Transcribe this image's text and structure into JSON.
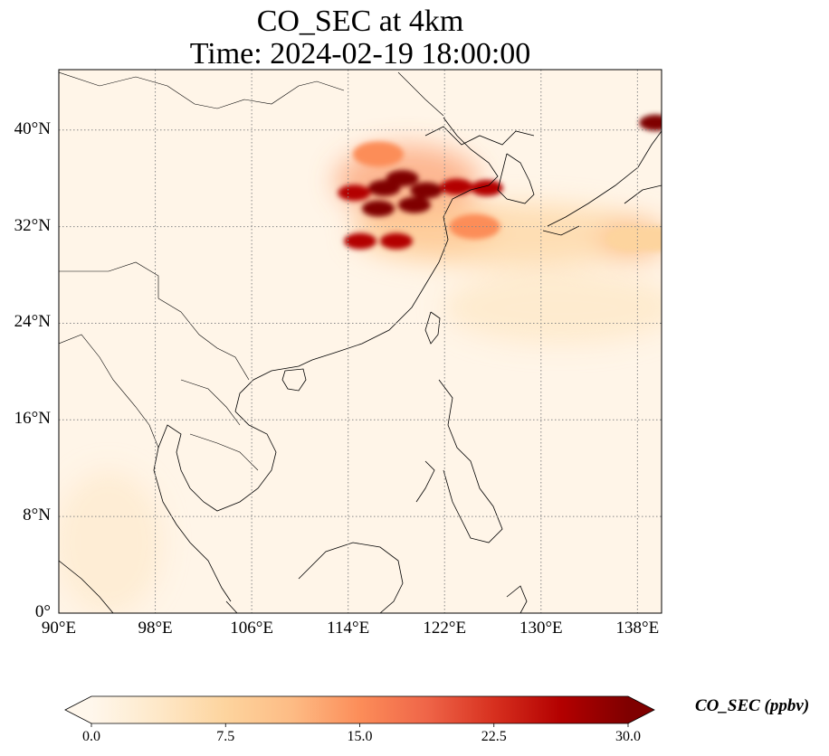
{
  "title": {
    "line1": "CO_SEC at 4km",
    "line2": "Time: 2024-02-19 18:00:00"
  },
  "map": {
    "projection": "PlateCarree",
    "lon_range": [
      90,
      140
    ],
    "lat_range": [
      0,
      45
    ],
    "gridlines": "dotted",
    "lon_ticks": [
      {
        "value": 90,
        "label": "90°E"
      },
      {
        "value": 98,
        "label": "98°E"
      },
      {
        "value": 106,
        "label": "106°E"
      },
      {
        "value": 114,
        "label": "114°E"
      },
      {
        "value": 122,
        "label": "122°E"
      },
      {
        "value": 130,
        "label": "130°E"
      },
      {
        "value": 138,
        "label": "138°E"
      }
    ],
    "lat_ticks": [
      {
        "value": 0,
        "label": "0°"
      },
      {
        "value": 8,
        "label": "8°N"
      },
      {
        "value": 16,
        "label": "16°N"
      },
      {
        "value": 24,
        "label": "24°N"
      },
      {
        "value": 32,
        "label": "32°N"
      },
      {
        "value": 40,
        "label": "40°N"
      }
    ],
    "field_background_color": "#fff5e8",
    "plumes": [
      {
        "lon": 118.5,
        "lat": 36.0,
        "intensity": 30
      },
      {
        "lon": 120.5,
        "lat": 35.0,
        "intensity": 30
      },
      {
        "lon": 117.0,
        "lat": 35.2,
        "intensity": 30
      },
      {
        "lon": 114.5,
        "lat": 34.8,
        "intensity": 28
      },
      {
        "lon": 123.0,
        "lat": 35.3,
        "intensity": 28
      },
      {
        "lon": 125.5,
        "lat": 35.2,
        "intensity": 27
      },
      {
        "lon": 116.5,
        "lat": 33.5,
        "intensity": 29
      },
      {
        "lon": 119.5,
        "lat": 33.8,
        "intensity": 30
      },
      {
        "lon": 115.0,
        "lat": 30.8,
        "intensity": 28
      },
      {
        "lon": 118.0,
        "lat": 30.8,
        "intensity": 28
      },
      {
        "lon": 116.5,
        "lat": 38.0,
        "intensity": 15
      },
      {
        "lon": 124.5,
        "lat": 32.0,
        "intensity": 14
      },
      {
        "lon": 139.5,
        "lat": 40.6,
        "intensity": 30
      },
      {
        "lon": 137.5,
        "lat": 31.0,
        "intensity": 6
      },
      {
        "lon": 139.5,
        "lat": 31.0,
        "intensity": 6
      }
    ]
  },
  "colorbar": {
    "label": "CO_SEC (ppbv)",
    "min": 0.0,
    "max": 30.0,
    "extend": "both",
    "colormap": "OrRd",
    "ticks": [
      "0.0",
      "7.5",
      "15.0",
      "22.5",
      "30.0"
    ],
    "colors": [
      "#fff7ec",
      "#fee8c8",
      "#fdd49e",
      "#fdbb84",
      "#fc8d59",
      "#ef6548",
      "#d7301f",
      "#b30000",
      "#7f0000"
    ]
  }
}
